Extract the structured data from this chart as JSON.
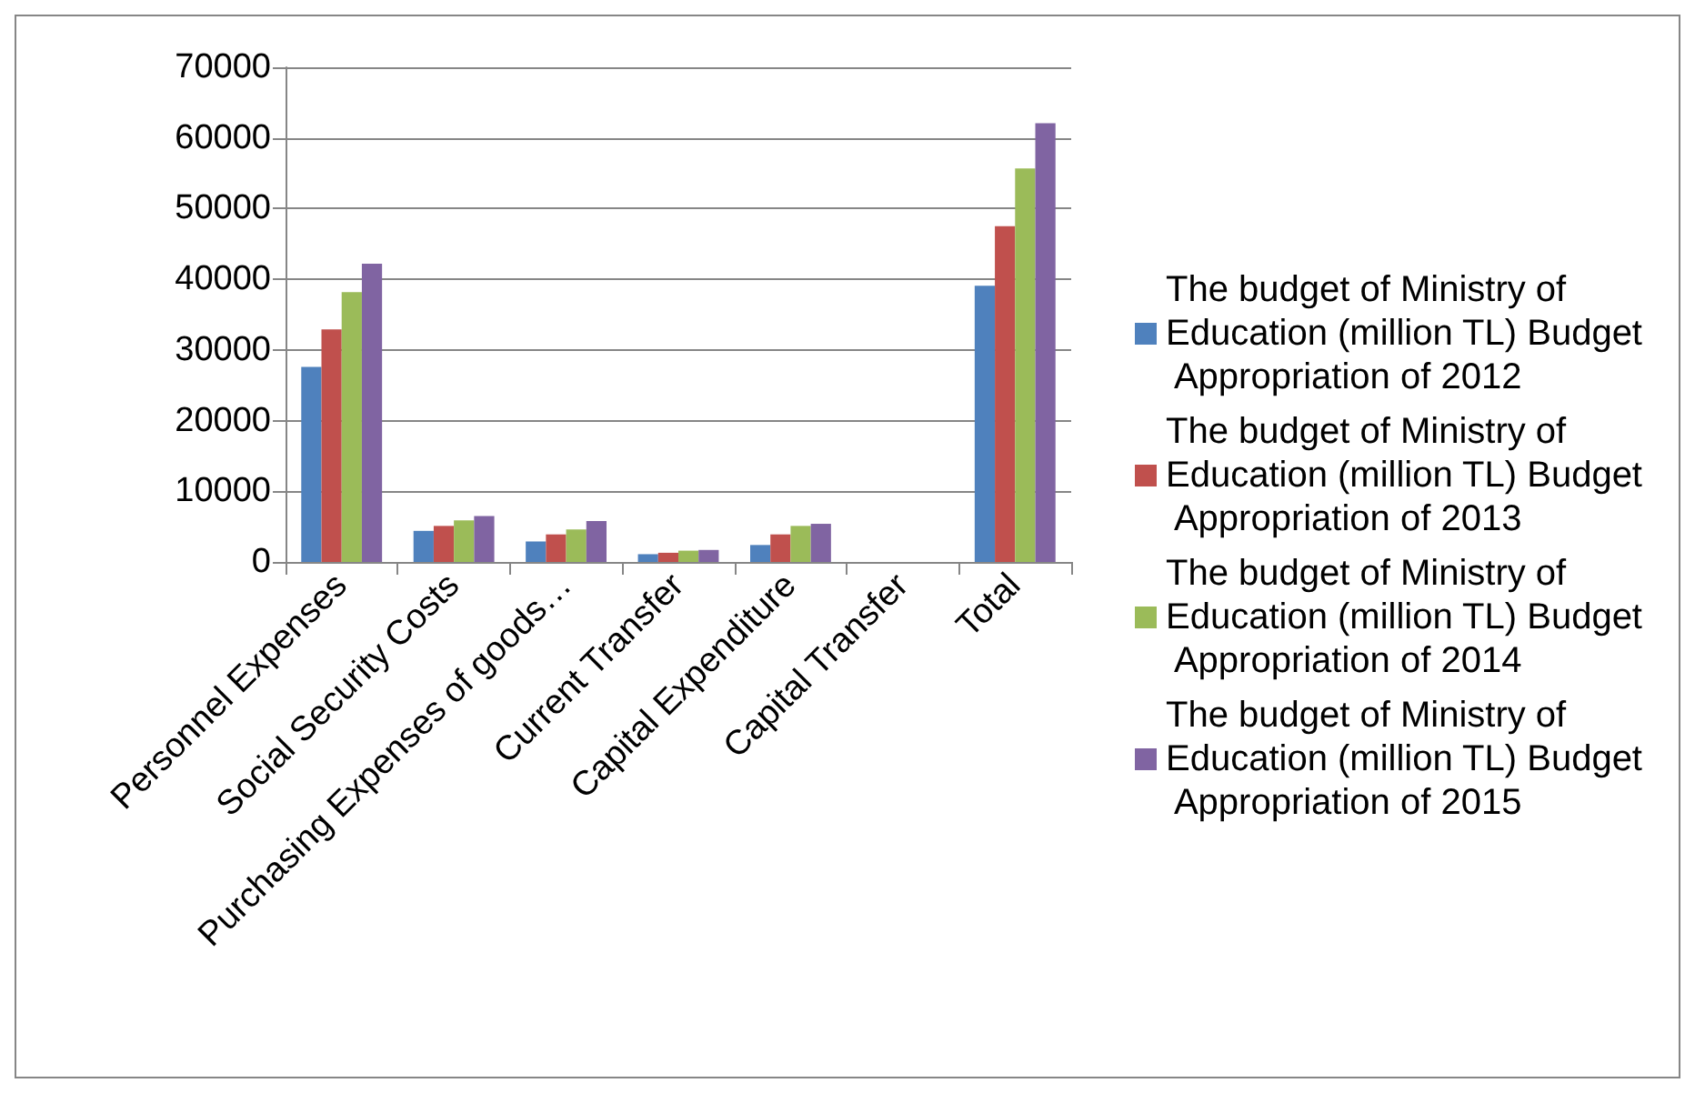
{
  "chart_data": {
    "type": "bar",
    "categories": [
      "Personnel Expenses",
      "Social Security Costs",
      "Purchasing Expenses of goods…",
      "Current Transfer",
      "Capital Expenditure",
      "Capital Transfer",
      "Total"
    ],
    "series": [
      {
        "name": "The budget of Ministry of Education (million TL) Budget  Appropriation of 2012",
        "color": "#4f81bd",
        "values": [
          27600,
          4400,
          2900,
          1100,
          2400,
          0,
          39100
        ]
      },
      {
        "name": "The budget of Ministry of Education (million TL) Budget  Appropriation of 2013",
        "color": "#c0504d",
        "values": [
          32900,
          5100,
          3900,
          1300,
          3900,
          0,
          47500
        ]
      },
      {
        "name": "The budget of Ministry of Education (million TL) Budget  Appropriation of 2014",
        "color": "#9bbb59",
        "values": [
          38200,
          5900,
          4600,
          1600,
          5100,
          0,
          55700
        ]
      },
      {
        "name": "The budget of Ministry of Education (million TL) Budget  Appropriation of 2015",
        "color": "#8064a2",
        "values": [
          42200,
          6500,
          5800,
          1700,
          5400,
          0,
          62100
        ]
      }
    ],
    "ylim": [
      0,
      70000
    ],
    "yticks": [
      0,
      10000,
      20000,
      30000,
      40000,
      50000,
      60000,
      70000
    ],
    "grid": "y",
    "legend": "right"
  }
}
